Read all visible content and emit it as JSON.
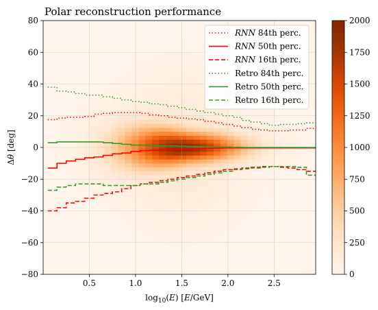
{
  "chart_data": {
    "type": "heatmap",
    "title": "Polar reconstruction performance",
    "xlabel": "log10(E) [E/GeV]",
    "ylabel": "Δθ [deg]",
    "xlim": [
      0.0,
      2.95
    ],
    "ylim": [
      -80,
      80
    ],
    "x_ticks": [
      0.5,
      1.0,
      1.5,
      2.0,
      2.5
    ],
    "x_tick_labels": [
      "0.5",
      "1.0",
      "1.5",
      "2.0",
      "2.5"
    ],
    "y_ticks": [
      -80,
      -60,
      -40,
      -20,
      0,
      20,
      40,
      60,
      80
    ],
    "y_tick_labels": [
      "−80",
      "−60",
      "−40",
      "−20",
      "0",
      "20",
      "40",
      "60",
      "80"
    ],
    "grid": true,
    "colorbar": {
      "min": 0,
      "max": 2000,
      "ticks": [
        0,
        250,
        500,
        750,
        1000,
        1250,
        1500,
        1750,
        2000
      ],
      "tick_labels": [
        "0",
        "250",
        "500",
        "750",
        "1000",
        "1250",
        "1500",
        "1750",
        "2000"
      ],
      "low_color": "#fff5eb",
      "mid_color": "#f16913",
      "high_color": "#7f2704"
    },
    "heatmap_model": {
      "density_peak": 2000,
      "peak_log10E": 1.5,
      "energy_spread": 0.45,
      "core_width_deg": 6,
      "low_energy_core_width_deg": 16,
      "tail_width_deg": 28
    },
    "legend": {
      "position": "upper right",
      "entries": [
        {
          "name": "RNN",
          "suffix": " 84th perc.",
          "italic_name": true,
          "color": "#ff0000",
          "style": "dotted"
        },
        {
          "name": "RNN",
          "suffix": " 50th perc.",
          "italic_name": true,
          "color": "#ff0000",
          "style": "solid"
        },
        {
          "name": "RNN",
          "suffix": " 16th perc.",
          "italic_name": true,
          "color": "#ff0000",
          "style": "dashed"
        },
        {
          "name": "Retro 84th perc.",
          "suffix": "",
          "italic_name": false,
          "color": "#2ca02c",
          "style": "dotted"
        },
        {
          "name": "Retro 50th perc.",
          "suffix": "",
          "italic_name": false,
          "color": "#2ca02c",
          "style": "solid"
        },
        {
          "name": "Retro 16th perc.",
          "suffix": "",
          "italic_name": false,
          "color": "#2ca02c",
          "style": "dashed"
        }
      ]
    },
    "x": [
      0.1,
      0.2,
      0.3,
      0.4,
      0.5,
      0.6,
      0.7,
      0.8,
      0.9,
      1.0,
      1.1,
      1.2,
      1.3,
      1.4,
      1.5,
      1.6,
      1.7,
      1.8,
      1.9,
      2.0,
      2.1,
      2.2,
      2.3,
      2.4,
      2.5,
      2.6,
      2.7,
      2.8,
      2.9
    ],
    "series": [
      {
        "name": "RNN 84th perc.",
        "color": "#ff0000",
        "style": "dotted",
        "values": [
          17.5,
          18.5,
          19.0,
          19.0,
          19.5,
          21.0,
          21.5,
          22.0,
          22.0,
          22.0,
          21.5,
          20.5,
          20.0,
          19.0,
          18.5,
          18.0,
          17.5,
          16.5,
          15.5,
          14.5,
          13.5,
          12.5,
          11.5,
          11.0,
          10.5,
          10.5,
          11.0,
          11.0,
          12.0
        ]
      },
      {
        "name": "RNN 50th perc.",
        "color": "#ff0000",
        "style": "solid",
        "values": [
          -13.0,
          -10.0,
          -8.5,
          -7.5,
          -6.5,
          -6.0,
          -5.0,
          -4.0,
          -3.5,
          -2.5,
          -2.0,
          -1.8,
          -1.5,
          -1.2,
          -1.0,
          -0.8,
          -0.6,
          -0.5,
          -0.4,
          -0.3,
          -0.3,
          -0.3,
          -0.3,
          -0.3,
          -0.3,
          -0.3,
          -0.3,
          -0.3,
          -0.3
        ]
      },
      {
        "name": "RNN 16th perc.",
        "color": "#ff0000",
        "style": "dashed",
        "values": [
          -40.0,
          -38.0,
          -35.0,
          -34.0,
          -32.0,
          -30.0,
          -29.0,
          -28.0,
          -26.0,
          -24.0,
          -23.0,
          -22.0,
          -21.0,
          -20.0,
          -19.0,
          -18.0,
          -17.0,
          -16.0,
          -15.0,
          -14.0,
          -13.5,
          -13.0,
          -12.5,
          -12.0,
          -12.0,
          -12.5,
          -13.0,
          -14.0,
          -15.0
        ]
      },
      {
        "name": "Retro 84th perc.",
        "color": "#2ca02c",
        "style": "dotted",
        "values": [
          38.0,
          35.5,
          35.0,
          34.0,
          33.0,
          33.0,
          32.0,
          31.0,
          30.0,
          29.0,
          28.5,
          27.5,
          27.0,
          26.0,
          25.0,
          24.0,
          23.0,
          22.0,
          21.0,
          20.0,
          19.0,
          17.0,
          16.0,
          15.0,
          14.0,
          14.5,
          14.5,
          15.0,
          15.5
        ]
      },
      {
        "name": "Retro 50th perc.",
        "color": "#2ca02c",
        "style": "solid",
        "values": [
          3.0,
          3.5,
          3.5,
          3.5,
          3.5,
          3.5,
          3.0,
          2.5,
          2.0,
          1.5,
          1.5,
          1.2,
          1.0,
          1.0,
          0.8,
          0.6,
          0.5,
          0.4,
          0.3,
          0.2,
          0.1,
          0.0,
          0.0,
          0.0,
          0.0,
          0.0,
          0.0,
          0.0,
          0.0
        ]
      },
      {
        "name": "Retro 16th perc.",
        "color": "#2ca02c",
        "style": "dashed",
        "values": [
          -27.0,
          -25.0,
          -24.0,
          -23.0,
          -23.0,
          -23.0,
          -24.0,
          -24.0,
          -24.0,
          -24.0,
          -23.0,
          -23.0,
          -22.0,
          -21.0,
          -20.0,
          -19.0,
          -18.0,
          -17.0,
          -16.0,
          -15.0,
          -14.0,
          -13.5,
          -13.0,
          -12.5,
          -12.0,
          -12.0,
          -12.0,
          -12.5,
          -17.5
        ]
      }
    ]
  }
}
